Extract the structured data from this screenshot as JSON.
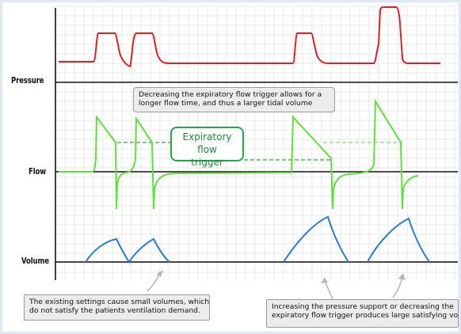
{
  "labels": {
    "pressure": "Pressure",
    "flow": "Flow",
    "volume": "Volume"
  },
  "callout": {
    "line1": "Expiratory flow",
    "line2": "trigger"
  },
  "notes": {
    "top": {
      "line1": "Decreasing the expiratory flow trigger allows for a",
      "line2": "longer flow time, and thus a larger tidal volume"
    },
    "bottom_left": {
      "line1": "The existing settings cause small volumes, which",
      "line2": "do not satisfy the patients ventilation demand."
    },
    "bottom_right": {
      "line1": "Increasing the pressure support or decreasing the",
      "line2": "expiratory flow trigger produces large satisfying volume"
    }
  },
  "colors": {
    "pressure": "#e02020",
    "flow": "#5ee03a",
    "volume": "#2a7ad6",
    "grid": "#e2e2e2",
    "callout": "#22a64a"
  }
}
